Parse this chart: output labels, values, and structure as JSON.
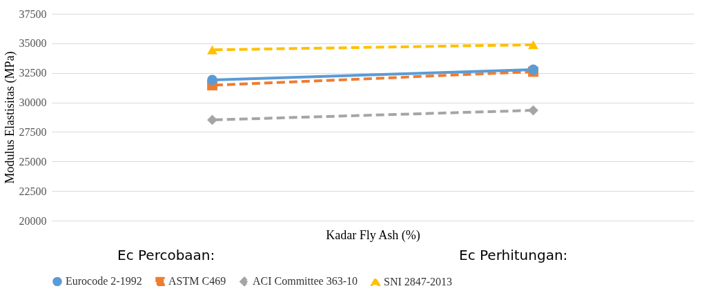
{
  "chart_data": {
    "type": "line",
    "xlabel": "Kadar Fly Ash (%)",
    "ylabel": "Modulus Elastisitas (MPa)",
    "categories": [
      null,
      null
    ],
    "series": [
      {
        "name": "Eurocode 2-1992",
        "color": "#5b9bd5",
        "marker": "circle",
        "line_style": "solid",
        "values": [
          31900,
          32780
        ]
      },
      {
        "name": "ASTM C469",
        "color": "#ed7d31",
        "marker": "square",
        "line_style": "dashed",
        "values": [
          31450,
          32600
        ]
      },
      {
        "name": "ACI Committee 363-10",
        "color": "#a5a5a5",
        "marker": "diamond",
        "line_style": "dashed",
        "values": [
          28520,
          29330
        ]
      },
      {
        "name": "SNI 2847-2013",
        "color": "#ffc000",
        "marker": "triangle",
        "line_style": "dashed",
        "values": [
          34450,
          34880
        ]
      }
    ],
    "ylim": [
      20000,
      37500
    ],
    "yticks": [
      20000,
      22500,
      25000,
      27500,
      30000,
      32500,
      35000,
      37500
    ],
    "grid": "y",
    "legend": "bottom",
    "tick_labels": "y",
    "annotations": [
      "Ec Percobaan:",
      "Ec Perhitungan:"
    ]
  }
}
